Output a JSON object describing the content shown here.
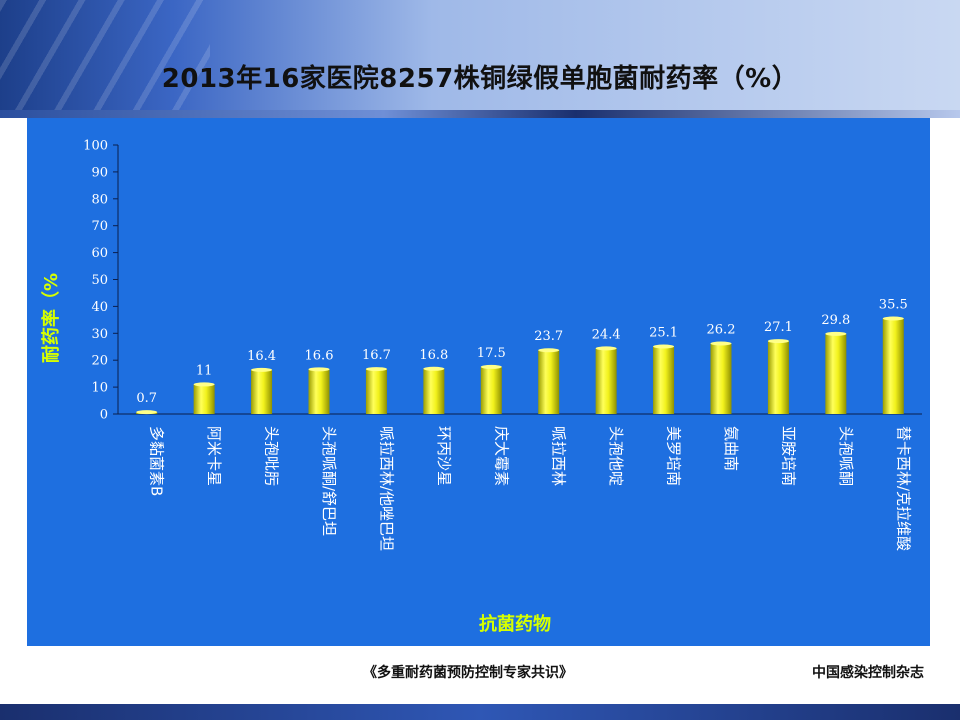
{
  "slide": {
    "title": "2013年16家医院8257株铜绿假单胞菌耐药率（%）",
    "footer_source": "《多重耐药菌预防控制专家共识》",
    "footer_journal": "中国感染控制杂志"
  },
  "colors": {
    "panel": "#1e6fe0",
    "bar_light": "#ffff66",
    "bar_dark": "#b5b800",
    "axis_title": "#d6ff00"
  },
  "chart_data": {
    "type": "bar",
    "title": "2013年16家医院8257株铜绿假单胞菌耐药率（%）",
    "xlabel": "抗菌药物",
    "ylabel": "耐药率（%",
    "ylim": [
      0,
      100
    ],
    "yticks": [
      0,
      10,
      20,
      30,
      40,
      50,
      60,
      70,
      80,
      90,
      100
    ],
    "categories": [
      "多黏菌素B",
      "阿米卡星",
      "头孢吡肟",
      "头孢哌酮/舒巴坦",
      "哌拉西林/他唑巴坦",
      "环丙沙星",
      "庆大霉素",
      "哌拉西林",
      "头孢他啶",
      "美罗培南",
      "氨曲南",
      "亚胺培南",
      "头孢哌酮",
      "替卡西林/克拉维酸"
    ],
    "values": [
      0.7,
      11,
      16.4,
      16.6,
      16.7,
      16.8,
      17.5,
      23.7,
      24.4,
      25.1,
      26.2,
      27.1,
      29.8,
      35.5
    ],
    "value_labels": [
      "0.7",
      "11",
      "16.4",
      "16.6",
      "16.7",
      "16.8",
      "17.5",
      "23.7",
      "24.4",
      "25.1",
      "26.2",
      "27.1",
      "29.8",
      "35.5"
    ],
    "grid": false,
    "legend": "none"
  }
}
